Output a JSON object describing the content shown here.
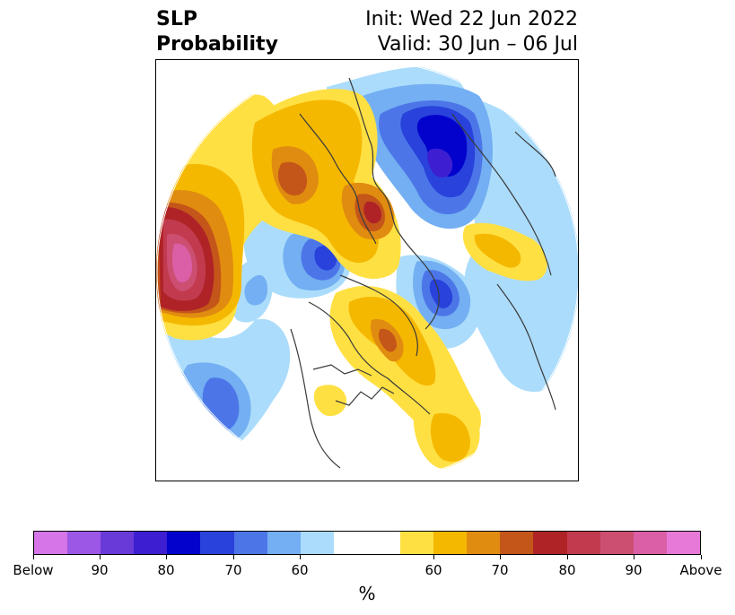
{
  "header": {
    "title_line1": "SLP",
    "title_line2": "Probability",
    "init_text": "Init: Wed 22 Jun 2022",
    "valid_text": "Valid: 30 Jun – 06 Jul"
  },
  "colorbar": {
    "unit": "%",
    "colors": [
      "#d575e8",
      "#9c57e6",
      "#6a3ad9",
      "#3d1fd1",
      "#0202cc",
      "#2842db",
      "#4c76e8",
      "#73aff2",
      "#abdcfb",
      "#ffffff",
      "#ffffff",
      "#ffe043",
      "#f5b800",
      "#e08c10",
      "#c45619",
      "#af2327",
      "#c23a4e",
      "#cc4f72",
      "#da5fa6",
      "#e77ad9"
    ],
    "tick_labels": [
      "Below",
      "90",
      "80",
      "70",
      "60",
      "60",
      "70",
      "80",
      "90",
      "Above"
    ]
  },
  "legend_colors": {
    "below_60": "#abdcfb",
    "below_70": "#73aff2",
    "below_80": "#2842db",
    "below_90": "#0202cc",
    "above_60": "#ffe043",
    "above_70": "#f5b800",
    "above_80": "#c45619",
    "above_90": "#cc4f72"
  }
}
